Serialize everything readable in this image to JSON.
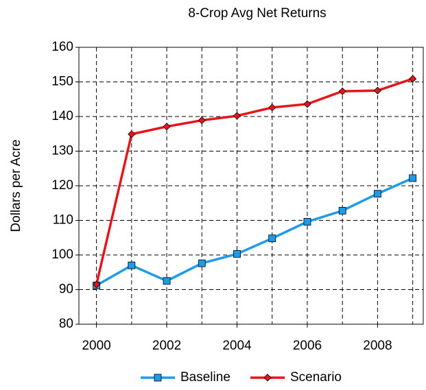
{
  "chart_data": {
    "type": "line",
    "title": "8-Crop Avg Net Returns",
    "ylabel": "Dollars per Acre",
    "x": [
      2000,
      2001,
      2002,
      2003,
      2004,
      2005,
      2006,
      2007,
      2008,
      2009
    ],
    "series": [
      {
        "name": "Baseline",
        "color": "#1e9be8",
        "marker": "square",
        "values": [
          91.2,
          97,
          92.5,
          97.6,
          100.3,
          104.8,
          109.6,
          112.8,
          117.7,
          122.2
        ]
      },
      {
        "name": "Scenario",
        "color": "#e8141b",
        "marker": "diamond",
        "values": [
          91.5,
          134.9,
          137.1,
          138.9,
          140.2,
          142.6,
          143.6,
          147.3,
          147.5,
          150.9
        ]
      }
    ],
    "xlim": [
      1999.5,
      2009.3
    ],
    "xticks": [
      2000,
      2002,
      2004,
      2006,
      2008
    ],
    "ylim": [
      80,
      160
    ],
    "yticks": [
      80,
      90,
      100,
      110,
      120,
      130,
      140,
      150,
      160
    ],
    "grid": true,
    "legend": "bottom"
  }
}
